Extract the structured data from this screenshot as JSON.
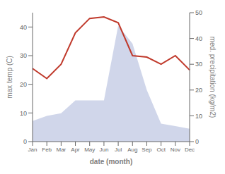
{
  "chart_data": {
    "type": "combo",
    "categories": [
      "Jan",
      "Feb",
      "Mar",
      "Apr",
      "May",
      "Jun",
      "Jul",
      "Aug",
      "Sep",
      "Oct",
      "Nov",
      "Dec"
    ],
    "xlabel": "date (month)",
    "ylabel": "max temp (C)",
    "y2label": "med. precipitation (kg/m2)",
    "ylim": [
      0,
      45
    ],
    "yticks": [
      0,
      10,
      20,
      30,
      40
    ],
    "y2lim": [
      0,
      50
    ],
    "y2ticks": [
      0,
      10,
      20,
      30,
      40,
      50
    ],
    "grid": false,
    "series": [
      {
        "type": "area",
        "axis": "y2",
        "color": "#aab4d8",
        "values": [
          8,
          10,
          11,
          16,
          16,
          16,
          45,
          38,
          20,
          7,
          6,
          5
        ]
      },
      {
        "type": "line",
        "color": "#c0392b",
        "values": [
          25.5,
          22.0,
          27.0,
          38.0,
          43.0,
          43.5,
          41.5,
          30.0,
          29.5,
          27.0,
          30.0,
          25.0
        ]
      }
    ]
  }
}
